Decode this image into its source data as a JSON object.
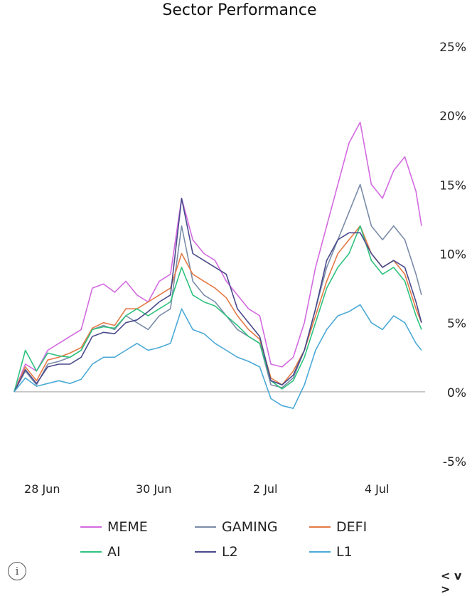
{
  "chart_data": {
    "type": "line",
    "title": "Sector Performance",
    "xlabel": "",
    "ylabel": "",
    "x_range": [
      0,
      7.3
    ],
    "ylim": [
      -5,
      25
    ],
    "y_ticks": [
      25,
      20,
      15,
      10,
      5,
      0,
      -5
    ],
    "y_tick_labels": [
      "25%",
      "20%",
      "15%",
      "10%",
      "5%",
      "0%",
      "-5%"
    ],
    "x_ticks": [
      0.5,
      2.5,
      4.5,
      6.5
    ],
    "x_tick_labels": [
      "28 Jun",
      "30 Jun",
      "2 Jul",
      "4 Jul"
    ],
    "baseline": 0,
    "legend_position": "bottom",
    "series": [
      {
        "name": "MEME",
        "color": "#d36ae0",
        "x": [
          0,
          0.2,
          0.4,
          0.6,
          0.8,
          1.0,
          1.2,
          1.4,
          1.6,
          1.8,
          2.0,
          2.2,
          2.4,
          2.6,
          2.8,
          3.0,
          3.2,
          3.4,
          3.6,
          3.8,
          4.0,
          4.2,
          4.4,
          4.6,
          4.8,
          5.0,
          5.2,
          5.4,
          5.6,
          5.8,
          6.0,
          6.2,
          6.4,
          6.6,
          6.8,
          7.0,
          7.2,
          7.3
        ],
        "values": [
          0,
          2,
          1.5,
          3,
          3.5,
          4,
          4.5,
          7.5,
          7.8,
          7.2,
          8,
          7,
          6.5,
          8,
          8.5,
          14,
          11,
          10,
          9.5,
          8,
          7,
          6,
          5.5,
          2,
          1.8,
          2.5,
          5,
          9,
          12,
          15,
          18,
          19.5,
          15,
          14,
          16,
          17,
          14.5,
          12
        ]
      },
      {
        "name": "GAMING",
        "color": "#7a8ca8",
        "x": [
          0,
          0.2,
          0.4,
          0.6,
          0.8,
          1.0,
          1.2,
          1.4,
          1.6,
          1.8,
          2.0,
          2.2,
          2.4,
          2.6,
          2.8,
          3.0,
          3.2,
          3.4,
          3.6,
          3.8,
          4.0,
          4.2,
          4.4,
          4.6,
          4.8,
          5.0,
          5.2,
          5.4,
          5.6,
          5.8,
          6.0,
          6.2,
          6.4,
          6.6,
          6.8,
          7.0,
          7.2,
          7.3
        ],
        "values": [
          0,
          1.5,
          0.5,
          2,
          2.2,
          2.5,
          3,
          4.5,
          4.8,
          4.5,
          5.5,
          5,
          4.5,
          5.5,
          6,
          12,
          8,
          7,
          6.5,
          5.5,
          4.5,
          4,
          3.5,
          0.5,
          0.3,
          1,
          3,
          6,
          9,
          11,
          13,
          15,
          12,
          11,
          12,
          11,
          8.5,
          7
        ]
      },
      {
        "name": "DEFI",
        "color": "#e57a45",
        "x": [
          0,
          0.2,
          0.4,
          0.6,
          0.8,
          1.0,
          1.2,
          1.4,
          1.6,
          1.8,
          2.0,
          2.2,
          2.4,
          2.6,
          2.8,
          3.0,
          3.2,
          3.4,
          3.6,
          3.8,
          4.0,
          4.2,
          4.4,
          4.6,
          4.8,
          5.0,
          5.2,
          5.4,
          5.6,
          5.8,
          6.0,
          6.2,
          6.4,
          6.6,
          6.8,
          7.0,
          7.2,
          7.3
        ],
        "values": [
          0,
          1.8,
          0.8,
          2.3,
          2.5,
          2.8,
          3.2,
          4.6,
          5,
          4.8,
          6,
          6,
          6.5,
          7,
          7.5,
          10,
          8.5,
          8,
          7.5,
          6.8,
          5.5,
          4.5,
          3.8,
          1,
          0.5,
          1.5,
          3,
          5.5,
          8,
          10,
          11,
          12,
          10,
          9,
          9.5,
          8.5,
          6,
          5
        ]
      },
      {
        "name": "AI",
        "color": "#2ec27e",
        "x": [
          0,
          0.2,
          0.4,
          0.6,
          0.8,
          1.0,
          1.2,
          1.4,
          1.6,
          1.8,
          2.0,
          2.2,
          2.4,
          2.6,
          2.8,
          3.0,
          3.2,
          3.4,
          3.6,
          3.8,
          4.0,
          4.2,
          4.4,
          4.6,
          4.8,
          5.0,
          5.2,
          5.4,
          5.6,
          5.8,
          6.0,
          6.2,
          6.4,
          6.6,
          6.8,
          7.0,
          7.2,
          7.3
        ],
        "values": [
          0,
          3,
          1.5,
          2.8,
          2.6,
          2.5,
          3,
          4.5,
          4.7,
          4.6,
          5.5,
          6,
          5.5,
          6,
          6.5,
          9,
          7,
          6.5,
          6.2,
          5.5,
          4.8,
          4,
          3.5,
          0.8,
          0.2,
          0.8,
          2.5,
          5,
          7.5,
          9,
          10,
          12,
          9.5,
          8.5,
          9,
          8,
          5.5,
          4.5
        ]
      },
      {
        "name": "L2",
        "color": "#4a4a8c",
        "x": [
          0,
          0.2,
          0.4,
          0.6,
          0.8,
          1.0,
          1.2,
          1.4,
          1.6,
          1.8,
          2.0,
          2.2,
          2.4,
          2.6,
          2.8,
          3.0,
          3.2,
          3.4,
          3.6,
          3.8,
          4.0,
          4.2,
          4.4,
          4.6,
          4.8,
          5.0,
          5.2,
          5.4,
          5.6,
          5.8,
          6.0,
          6.2,
          6.4,
          6.6,
          6.8,
          7.0,
          7.2,
          7.3
        ],
        "values": [
          0,
          1.6,
          0.6,
          1.8,
          2,
          2,
          2.5,
          4,
          4.3,
          4.2,
          5,
          5.2,
          5.8,
          6.5,
          7,
          14,
          10,
          9.5,
          9,
          8.5,
          6,
          5,
          4,
          0.8,
          0.5,
          1.2,
          3,
          6,
          9.5,
          11,
          11.5,
          11.5,
          10,
          9,
          9.5,
          9,
          6.5,
          5
        ]
      },
      {
        "name": "L1",
        "color": "#4aa9d6",
        "x": [
          0,
          0.2,
          0.4,
          0.6,
          0.8,
          1.0,
          1.2,
          1.4,
          1.6,
          1.8,
          2.0,
          2.2,
          2.4,
          2.6,
          2.8,
          3.0,
          3.2,
          3.4,
          3.6,
          3.8,
          4.0,
          4.2,
          4.4,
          4.6,
          4.8,
          5.0,
          5.2,
          5.4,
          5.6,
          5.8,
          6.0,
          6.2,
          6.4,
          6.6,
          6.8,
          7.0,
          7.2,
          7.3
        ],
        "values": [
          0,
          1,
          0.4,
          0.6,
          0.8,
          0.6,
          0.9,
          2,
          2.5,
          2.5,
          3,
          3.5,
          3,
          3.2,
          3.5,
          6,
          4.5,
          4.2,
          3.5,
          3,
          2.5,
          2.2,
          1.8,
          -0.5,
          -1,
          -1.2,
          0.5,
          3,
          4.5,
          5.5,
          5.8,
          6.3,
          5,
          4.5,
          5.5,
          5,
          3.5,
          3
        ]
      }
    ]
  }
}
